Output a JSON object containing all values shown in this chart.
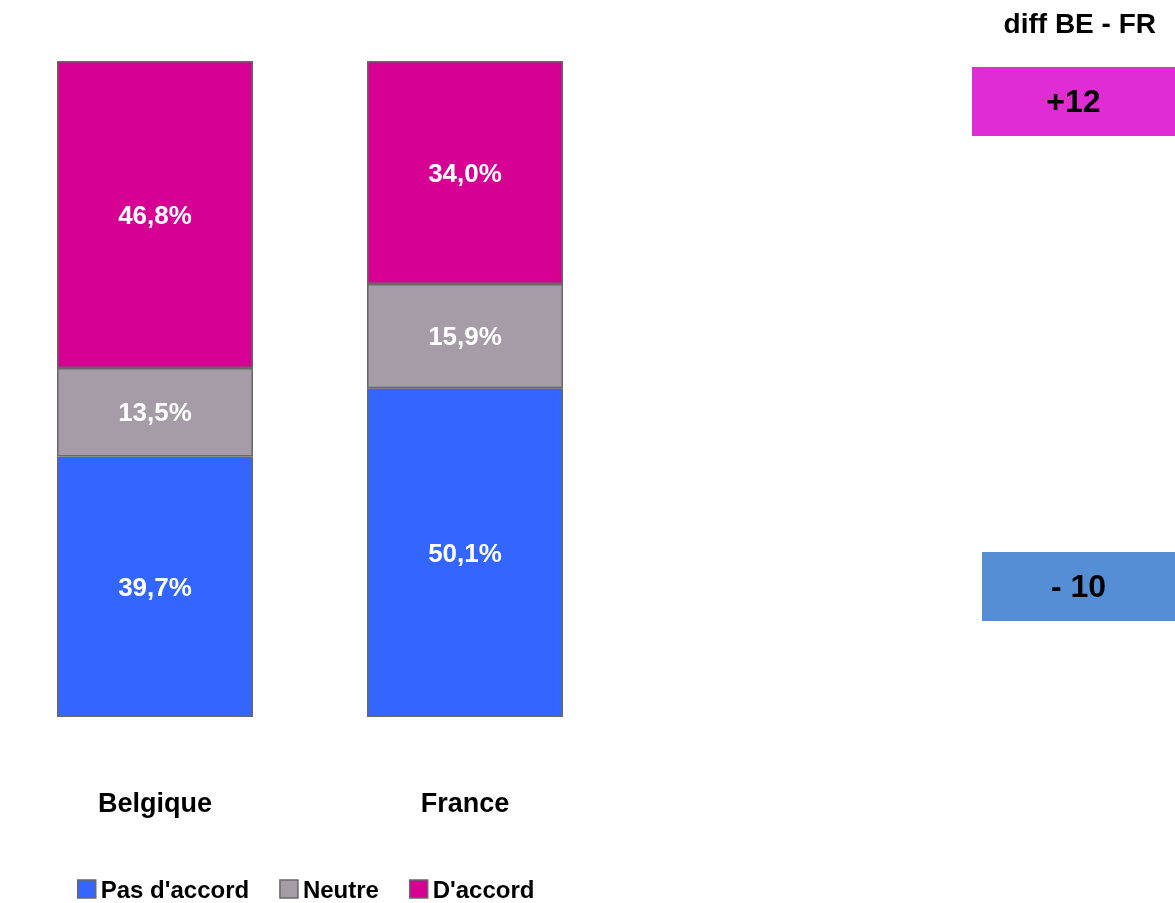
{
  "chart_data": {
    "type": "bar",
    "title": "diff BE - FR",
    "categories": [
      "Belgique",
      "France"
    ],
    "stacked": true,
    "series": [
      {
        "name": "Pas d'accord",
        "color": "#3366ff",
        "values": [
          39.7,
          50.1
        ],
        "value_labels": [
          "39,7%",
          "50,1%"
        ]
      },
      {
        "name": "Neutre",
        "color": "#a69ca8",
        "values": [
          13.5,
          15.9
        ],
        "value_labels": [
          "13,5%",
          "15,9%"
        ]
      },
      {
        "name": "D'accord",
        "color": "#d60093",
        "values": [
          46.8,
          34.0
        ],
        "value_labels": [
          "46,8%",
          "34,0%"
        ]
      }
    ],
    "annotations": [
      "+12",
      "- 10"
    ],
    "legend": "bottom"
  }
}
